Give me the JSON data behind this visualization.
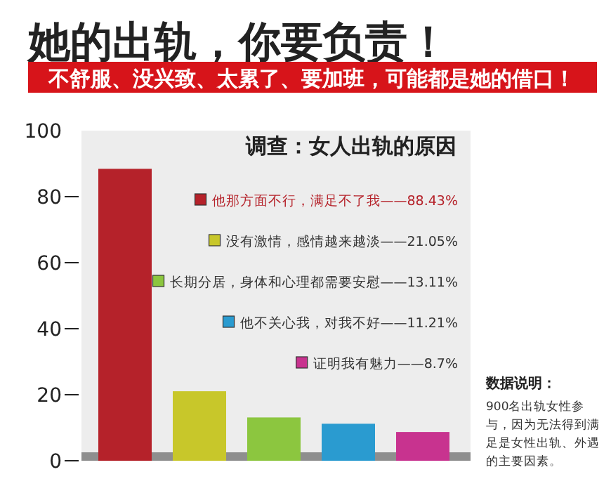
{
  "chart_data": {
    "type": "bar",
    "title": "她的出轨，你要负责！",
    "subtitle": "不舒服、没兴致、太累了、要加班，可能都是她的借口！",
    "annotations": [
      "调查：女人出轨的原因",
      "数据说明：",
      "900名出轨女性参与，因为无法得到满足是女性出轨、外遇的主要因素。"
    ],
    "categories": [
      null,
      null,
      null,
      null,
      null
    ],
    "stacked": true,
    "series": [
      {
        "name": "他那方面不行，满足不了我——88.43%",
        "color": "#b5222a",
        "values": [
          88.43,
          null,
          null,
          null,
          null
        ]
      },
      {
        "name": "没有激情，感情越来越淡——21.05%",
        "color": "#c8c72a",
        "values": [
          null,
          21.05,
          null,
          null,
          null
        ]
      },
      {
        "name": "长期分居，身体和心理都需要安慰——13.11%",
        "color": "#8cc63f",
        "values": [
          null,
          null,
          13.11,
          null,
          null
        ]
      },
      {
        "name": "他不关心我，对我不好——11.21%",
        "color": "#2a9bd0",
        "values": [
          null,
          null,
          null,
          11.21,
          null
        ]
      },
      {
        "name": "证明我有魅力——8.7%",
        "color": "#c8338f",
        "values": [
          null,
          null,
          null,
          null,
          8.7
        ]
      }
    ],
    "ylim": [
      0,
      100
    ],
    "yticks": [
      0,
      20,
      40,
      60,
      80,
      100
    ],
    "legend": "top right"
  }
}
